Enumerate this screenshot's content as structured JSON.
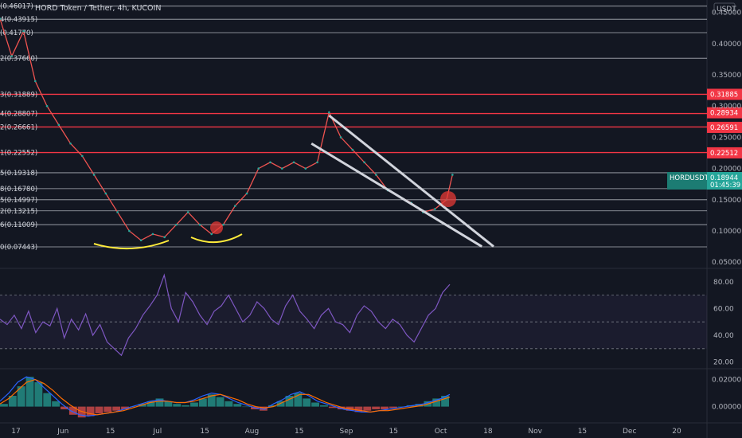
{
  "header": {
    "title": "HORD Token / Tether, 4h, KUCOIN"
  },
  "currency": "USDT",
  "chart_data": [
    {
      "type": "line",
      "panel": "price",
      "title": "HORD Token / Tether, 4h, KUCOIN",
      "ylim": [
        0.04,
        0.47
      ],
      "y_ticks": [
        "0.45000",
        "0.40000",
        "0.35000",
        "0.30000",
        "0.25000",
        "0.20000",
        "0.15000",
        "0.10000",
        "0.05000"
      ],
      "y_tick_values": [
        0.45,
        0.4,
        0.35,
        0.3,
        0.25,
        0.2,
        0.15,
        0.1,
        0.05
      ],
      "x_ticks": [
        "17",
        "Jun",
        "15",
        "Jul",
        "15",
        "Aug",
        "15",
        "Sep",
        "15",
        "Oct",
        "18",
        "Nov",
        "15",
        "Dec",
        "20"
      ],
      "fib_levels": [
        {
          "label": "(0.46017)",
          "value": 0.46017
        },
        {
          "label": "4(0.43915)",
          "value": 0.43915
        },
        {
          "label": "(0.41770)",
          "value": 0.4177
        },
        {
          "label": "2(0.37660)",
          "value": 0.3766
        },
        {
          "label": "3(0.31889)",
          "value": 0.31889
        },
        {
          "label": "4(0.28807)",
          "value": 0.28807
        },
        {
          "label": "2(0.26661)",
          "value": 0.26661
        },
        {
          "label": "1(0.22552)",
          "value": 0.22552
        },
        {
          "label": "5(0.19318)",
          "value": 0.19318
        },
        {
          "label": "8(0.16780)",
          "value": 0.1678
        },
        {
          "label": "5(0.14997)",
          "value": 0.14997
        },
        {
          "label": "2(0.13215)",
          "value": 0.13215
        },
        {
          "label": "6(0.11009)",
          "value": 0.11009
        },
        {
          "label": "0(0.07443)",
          "value": 0.07443
        }
      ],
      "resistance_tags": [
        {
          "label": "0.31885",
          "value": 0.31885
        },
        {
          "label": "0.28934",
          "value": 0.28934
        },
        {
          "label": "0.26591",
          "value": 0.26591
        },
        {
          "label": "0.22512",
          "value": 0.22512
        }
      ],
      "current": {
        "symbol": "HORDUSDT",
        "price": "0.18944",
        "countdown": "01:45:39",
        "value": 0.18944
      },
      "price_series": [
        [
          0,
          0.44
        ],
        [
          2,
          0.38
        ],
        [
          4,
          0.42
        ],
        [
          6,
          0.34
        ],
        [
          8,
          0.3
        ],
        [
          10,
          0.27
        ],
        [
          12,
          0.24
        ],
        [
          14,
          0.22
        ],
        [
          16,
          0.19
        ],
        [
          18,
          0.16
        ],
        [
          20,
          0.13
        ],
        [
          22,
          0.1
        ],
        [
          24,
          0.085
        ],
        [
          26,
          0.095
        ],
        [
          28,
          0.09
        ],
        [
          30,
          0.11
        ],
        [
          32,
          0.13
        ],
        [
          34,
          0.11
        ],
        [
          36,
          0.095
        ],
        [
          38,
          0.11
        ],
        [
          40,
          0.14
        ],
        [
          42,
          0.16
        ],
        [
          44,
          0.2
        ],
        [
          46,
          0.21
        ],
        [
          48,
          0.2
        ],
        [
          50,
          0.21
        ],
        [
          52,
          0.2
        ],
        [
          54,
          0.21
        ],
        [
          56,
          0.29
        ],
        [
          58,
          0.25
        ],
        [
          60,
          0.23
        ],
        [
          62,
          0.21
        ],
        [
          64,
          0.19
        ],
        [
          66,
          0.165
        ],
        [
          68,
          0.155
        ],
        [
          70,
          0.145
        ],
        [
          72,
          0.13
        ],
        [
          74,
          0.135
        ],
        [
          76,
          0.15
        ],
        [
          77,
          0.19
        ]
      ],
      "channel_lines": [
        {
          "from": [
            56,
            0.285
          ],
          "to": [
            84,
            0.075
          ]
        },
        {
          "from": [
            53,
            0.24
          ],
          "to": [
            82,
            0.075
          ]
        }
      ]
    },
    {
      "type": "line",
      "panel": "rsi",
      "ylim": [
        15,
        90
      ],
      "y_ticks": [
        "80.00",
        "60.00",
        "40.00",
        "20.00"
      ],
      "y_tick_values": [
        80,
        60,
        40,
        20
      ],
      "band": [
        30,
        70
      ],
      "midline": 50,
      "values": [
        52,
        48,
        55,
        45,
        58,
        42,
        50,
        47,
        60,
        38,
        52,
        44,
        56,
        40,
        48,
        35,
        30,
        25,
        38,
        45,
        55,
        62,
        70,
        85,
        60,
        50,
        72,
        65,
        55,
        48,
        58,
        62,
        70,
        60,
        50,
        55,
        65,
        60,
        52,
        48,
        62,
        70,
        58,
        52,
        45,
        55,
        60,
        50,
        48,
        42,
        55,
        62,
        58,
        50,
        45,
        52,
        48,
        40,
        35,
        45,
        55,
        60,
        72,
        78
      ]
    },
    {
      "type": "bar",
      "panel": "macd",
      "y_ticks": [
        "0.02000",
        "0.00000"
      ],
      "y_tick_values": [
        0.02,
        0.0
      ],
      "ylim": [
        -0.012,
        0.028
      ],
      "histogram": [
        0.002,
        0.008,
        0.015,
        0.022,
        0.018,
        0.01,
        0.004,
        -0.002,
        -0.006,
        -0.008,
        -0.007,
        -0.005,
        -0.004,
        -0.003,
        -0.002,
        0.0,
        0.002,
        0.004,
        0.006,
        0.004,
        0.002,
        0.001,
        0.003,
        0.006,
        0.009,
        0.007,
        0.004,
        0.002,
        0.0,
        -0.002,
        -0.003,
        0.001,
        0.004,
        0.008,
        0.01,
        0.006,
        0.003,
        0.001,
        -0.001,
        -0.002,
        -0.003,
        -0.004,
        -0.003,
        -0.002,
        -0.002,
        -0.001,
        0.0,
        0.001,
        0.002,
        0.004,
        0.006,
        0.008
      ],
      "macd": [
        0.004,
        0.01,
        0.018,
        0.022,
        0.02,
        0.014,
        0.008,
        0.002,
        -0.003,
        -0.006,
        -0.007,
        -0.006,
        -0.005,
        -0.004,
        -0.002,
        0.0,
        0.002,
        0.004,
        0.005,
        0.004,
        0.003,
        0.003,
        0.005,
        0.008,
        0.01,
        0.009,
        0.006,
        0.003,
        0.001,
        -0.001,
        -0.002,
        0.002,
        0.005,
        0.009,
        0.011,
        0.008,
        0.004,
        0.002,
        0.0,
        -0.002,
        -0.003,
        -0.004,
        -0.004,
        -0.003,
        -0.002,
        -0.001,
        0.0,
        0.001,
        0.002,
        0.004,
        0.006,
        0.009
      ],
      "signal": [
        0.002,
        0.006,
        0.012,
        0.018,
        0.02,
        0.017,
        0.012,
        0.006,
        0.001,
        -0.003,
        -0.005,
        -0.006,
        -0.005,
        -0.004,
        -0.003,
        -0.001,
        0.001,
        0.003,
        0.004,
        0.004,
        0.003,
        0.003,
        0.004,
        0.006,
        0.008,
        0.009,
        0.007,
        0.005,
        0.002,
        0.0,
        -0.001,
        0.0,
        0.003,
        0.006,
        0.009,
        0.009,
        0.006,
        0.003,
        0.001,
        -0.001,
        -0.002,
        -0.003,
        -0.004,
        -0.003,
        -0.003,
        -0.002,
        -0.001,
        0.0,
        0.001,
        0.003,
        0.005,
        0.007
      ]
    }
  ]
}
